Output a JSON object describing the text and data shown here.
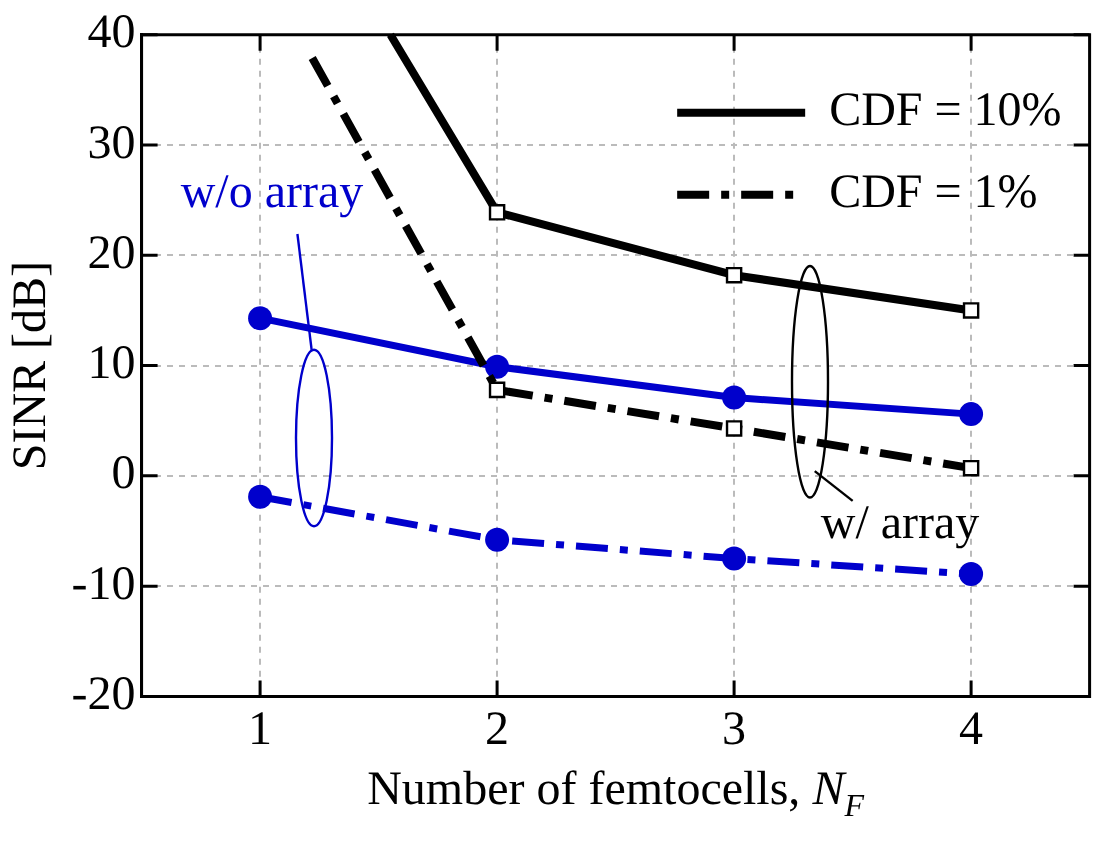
{
  "chart_data": {
    "type": "line",
    "xlabel": "Number of femtocells, N$_{F}$",
    "ylabel": "SINR [dB]",
    "xlim": [
      0.5,
      4.5
    ],
    "xticks": [
      1,
      2,
      3,
      4
    ],
    "ylim": [
      -20,
      40
    ],
    "yticks": [
      -20,
      -10,
      0,
      10,
      20,
      30,
      40
    ],
    "grid": true,
    "legend": "top right",
    "series": [
      {
        "name": "CDF = 10%",
        "color": "#000000",
        "x": [
          1.55,
          2,
          3,
          4
        ],
        "values": [
          40,
          23.9,
          18.2,
          15.0
        ],
        "marker": "square",
        "line_style": "solid"
      },
      {
        "name": "CDF = 1%",
        "color": "#000000",
        "x": [
          1.22,
          2,
          3,
          4
        ],
        "values": [
          37.9,
          7.8,
          4.3,
          0.7
        ],
        "marker": "square",
        "line_style": "dashed"
      },
      {
        "color": "#0000cc",
        "x": [
          1,
          2,
          3,
          4
        ],
        "values": [
          14.3,
          9.9,
          7.1,
          5.6
        ],
        "marker": "circle",
        "line_style": "solid"
      },
      {
        "color": "#0000cc",
        "x": [
          1,
          2,
          3,
          4
        ],
        "values": [
          -1.9,
          -5.8,
          -7.5,
          -8.9
        ],
        "marker": "circle",
        "line_style": "dashed"
      }
    ],
    "annotations": [
      "w/o array",
      "w/ array"
    ]
  }
}
